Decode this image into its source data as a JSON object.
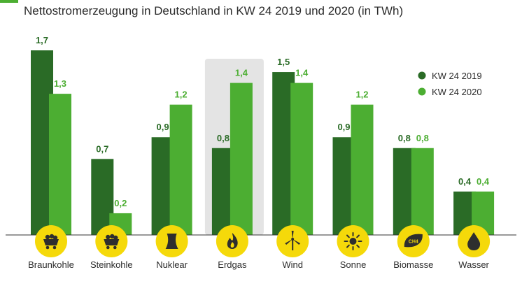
{
  "title": "Nettostromerzeugung in Deutschland in KW 24 2019 und 2020 (in TWh)",
  "colors": {
    "series_2019": "#2a6b26",
    "series_2020": "#4cae32",
    "icon_circle": "#f5d90a",
    "icon_glyph": "#2e2e2e",
    "highlight": "#e4e4e4",
    "accent": "#4cae32"
  },
  "chart_data": {
    "type": "bar",
    "title": "Nettostromerzeugung in Deutschland in KW 24 2019 und 2020 (in TWh)",
    "xlabel": "",
    "ylabel": "TWh",
    "ylim": [
      0,
      1.7
    ],
    "categories": [
      "Braunkohle",
      "Steinkohle",
      "Nuklear",
      "Erdgas",
      "Wind",
      "Sonne",
      "Biomasse",
      "Wasser"
    ],
    "icons": [
      "coal-cart-icon",
      "coal-cart-icon",
      "cooling-tower-icon",
      "flame-icon",
      "wind-turbine-icon",
      "sun-icon",
      "biomass-ch4-icon",
      "water-drop-icon"
    ],
    "icon_text": [
      "",
      "",
      "",
      "",
      "",
      "",
      "CH4",
      ""
    ],
    "highlighted_category": "Erdgas",
    "series": [
      {
        "name": "KW 24 2019",
        "values": [
          1.7,
          0.7,
          0.9,
          0.8,
          1.5,
          0.9,
          0.8,
          0.4
        ],
        "labels": [
          "1,7",
          "0,7",
          "0,9",
          "0,8",
          "1,5",
          "0,9",
          "0,8",
          "0,4"
        ]
      },
      {
        "name": "KW 24 2020",
        "values": [
          1.3,
          0.2,
          1.2,
          1.4,
          1.4,
          1.2,
          0.8,
          0.4
        ],
        "labels": [
          "1,3",
          "0,2",
          "1,2",
          "1,4",
          "1,4",
          "1,2",
          "0,8",
          "0,4"
        ]
      }
    ],
    "legend": {
      "position": "top-right",
      "entries": [
        "KW 24 2019",
        "KW 24 2020"
      ]
    },
    "grid": false
  }
}
